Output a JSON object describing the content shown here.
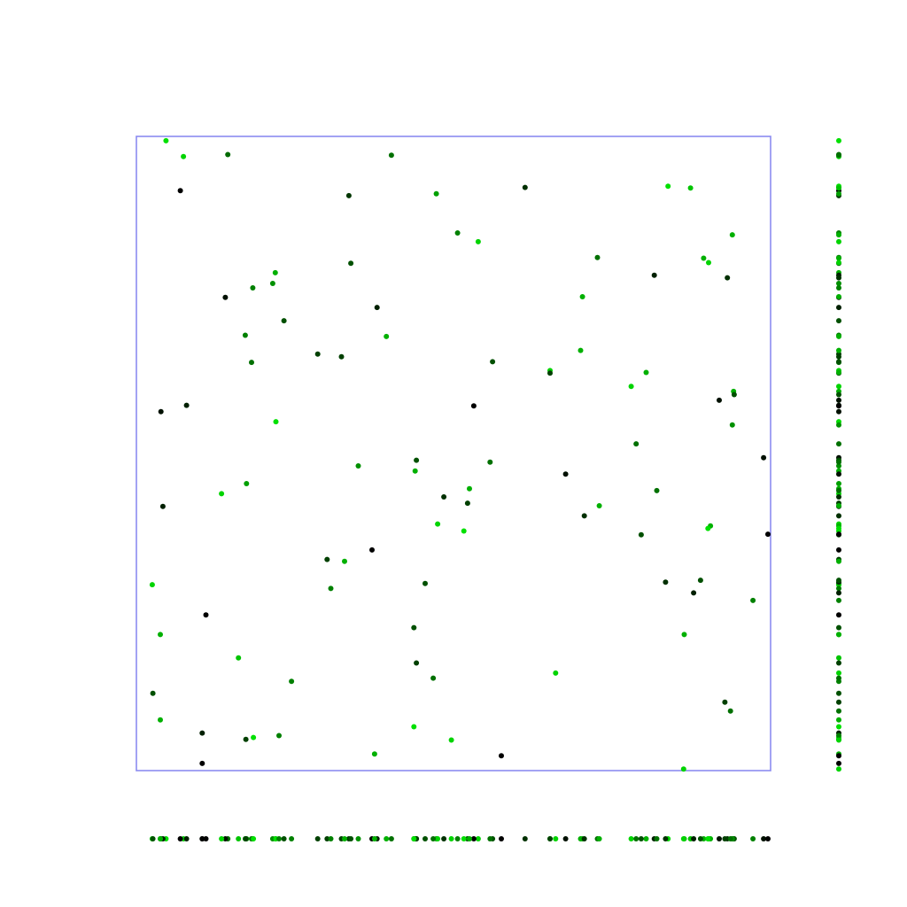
{
  "chart_data": {
    "type": "scatter",
    "title": "",
    "xlabel": "",
    "ylabel": "",
    "xlim": [
      0,
      1
    ],
    "ylim": [
      0,
      1
    ],
    "grid": false,
    "legend": "none",
    "frame_color": "#8c8cf0",
    "marginal_rugs": [
      "x-bottom",
      "y-right"
    ],
    "color_scale": {
      "dark": "#000000",
      "bright": "#00ee00"
    },
    "points": [
      {
        "x": 0.036,
        "y": 0.996,
        "c": "#00e000"
      },
      {
        "x": 0.064,
        "y": 0.971,
        "c": "#00d400"
      },
      {
        "x": 0.135,
        "y": 0.974,
        "c": "#006a00"
      },
      {
        "x": 0.397,
        "y": 0.973,
        "c": "#007000"
      },
      {
        "x": 0.059,
        "y": 0.917,
        "c": "#000000"
      },
      {
        "x": 0.329,
        "y": 0.909,
        "c": "#003600"
      },
      {
        "x": 0.469,
        "y": 0.912,
        "c": "#00a000"
      },
      {
        "x": 0.611,
        "y": 0.922,
        "c": "#003000"
      },
      {
        "x": 0.84,
        "y": 0.924,
        "c": "#00e000"
      },
      {
        "x": 0.876,
        "y": 0.921,
        "c": "#00c400"
      },
      {
        "x": 0.503,
        "y": 0.85,
        "c": "#008000"
      },
      {
        "x": 0.536,
        "y": 0.836,
        "c": "#00d400"
      },
      {
        "x": 0.943,
        "y": 0.847,
        "c": "#00b000"
      },
      {
        "x": 0.211,
        "y": 0.787,
        "c": "#00b000"
      },
      {
        "x": 0.207,
        "y": 0.77,
        "c": "#009000"
      },
      {
        "x": 0.175,
        "y": 0.763,
        "c": "#008000"
      },
      {
        "x": 0.332,
        "y": 0.802,
        "c": "#005000"
      },
      {
        "x": 0.727,
        "y": 0.811,
        "c": "#007000"
      },
      {
        "x": 0.897,
        "y": 0.81,
        "c": "#00b000"
      },
      {
        "x": 0.905,
        "y": 0.803,
        "c": "#00d400"
      },
      {
        "x": 0.818,
        "y": 0.783,
        "c": "#002000"
      },
      {
        "x": 0.935,
        "y": 0.779,
        "c": "#003000"
      },
      {
        "x": 0.131,
        "y": 0.748,
        "c": "#001000"
      },
      {
        "x": 0.374,
        "y": 0.732,
        "c": "#002000"
      },
      {
        "x": 0.703,
        "y": 0.749,
        "c": "#00b000"
      },
      {
        "x": 0.225,
        "y": 0.711,
        "c": "#005000"
      },
      {
        "x": 0.163,
        "y": 0.688,
        "c": "#008000"
      },
      {
        "x": 0.389,
        "y": 0.686,
        "c": "#00b000"
      },
      {
        "x": 0.279,
        "y": 0.658,
        "c": "#004000"
      },
      {
        "x": 0.317,
        "y": 0.654,
        "c": "#004000"
      },
      {
        "x": 0.173,
        "y": 0.645,
        "c": "#007000"
      },
      {
        "x": 0.559,
        "y": 0.646,
        "c": "#005000"
      },
      {
        "x": 0.7,
        "y": 0.664,
        "c": "#00b000"
      },
      {
        "x": 0.651,
        "y": 0.632,
        "c": "#00d400"
      },
      {
        "x": 0.651,
        "y": 0.628,
        "c": "#004000"
      },
      {
        "x": 0.805,
        "y": 0.629,
        "c": "#00b000"
      },
      {
        "x": 0.781,
        "y": 0.607,
        "c": "#00d400"
      },
      {
        "x": 0.945,
        "y": 0.599,
        "c": "#00b000"
      },
      {
        "x": 0.946,
        "y": 0.594,
        "c": "#005000"
      },
      {
        "x": 0.028,
        "y": 0.567,
        "c": "#001000"
      },
      {
        "x": 0.069,
        "y": 0.577,
        "c": "#002000"
      },
      {
        "x": 0.529,
        "y": 0.576,
        "c": "#000000"
      },
      {
        "x": 0.922,
        "y": 0.585,
        "c": "#001000"
      },
      {
        "x": 0.212,
        "y": 0.551,
        "c": "#00e000"
      },
      {
        "x": 0.943,
        "y": 0.546,
        "c": "#009000"
      },
      {
        "x": 0.993,
        "y": 0.494,
        "c": "#001000"
      },
      {
        "x": 0.789,
        "y": 0.516,
        "c": "#007000"
      },
      {
        "x": 0.344,
        "y": 0.481,
        "c": "#009000"
      },
      {
        "x": 0.435,
        "y": 0.473,
        "c": "#00b000"
      },
      {
        "x": 0.437,
        "y": 0.49,
        "c": "#005000"
      },
      {
        "x": 0.555,
        "y": 0.487,
        "c": "#007000"
      },
      {
        "x": 0.676,
        "y": 0.468,
        "c": "#001000"
      },
      {
        "x": 0.165,
        "y": 0.453,
        "c": "#00a000"
      },
      {
        "x": 0.125,
        "y": 0.437,
        "c": "#00d400"
      },
      {
        "x": 0.481,
        "y": 0.432,
        "c": "#003000"
      },
      {
        "x": 0.519,
        "y": 0.422,
        "c": "#004000"
      },
      {
        "x": 0.522,
        "y": 0.445,
        "c": "#00b000"
      },
      {
        "x": 0.822,
        "y": 0.442,
        "c": "#007000"
      },
      {
        "x": 0.031,
        "y": 0.417,
        "c": "#002000"
      },
      {
        "x": 0.73,
        "y": 0.418,
        "c": "#00b000"
      },
      {
        "x": 0.706,
        "y": 0.402,
        "c": "#003000"
      },
      {
        "x": 0.471,
        "y": 0.389,
        "c": "#00d400"
      },
      {
        "x": 0.513,
        "y": 0.378,
        "c": "#00e000"
      },
      {
        "x": 0.908,
        "y": 0.386,
        "c": "#00b000"
      },
      {
        "x": 0.904,
        "y": 0.382,
        "c": "#00e000"
      },
      {
        "x": 0.797,
        "y": 0.372,
        "c": "#005000"
      },
      {
        "x": 1.0,
        "y": 0.373,
        "c": "#000000"
      },
      {
        "x": 0.366,
        "y": 0.348,
        "c": "#000000"
      },
      {
        "x": 0.294,
        "y": 0.333,
        "c": "#004000"
      },
      {
        "x": 0.322,
        "y": 0.33,
        "c": "#00b000"
      },
      {
        "x": 0.451,
        "y": 0.295,
        "c": "#005000"
      },
      {
        "x": 0.014,
        "y": 0.293,
        "c": "#00d400"
      },
      {
        "x": 0.3,
        "y": 0.287,
        "c": "#008000"
      },
      {
        "x": 0.836,
        "y": 0.297,
        "c": "#003000"
      },
      {
        "x": 0.892,
        "y": 0.3,
        "c": "#005000"
      },
      {
        "x": 0.881,
        "y": 0.28,
        "c": "#002000"
      },
      {
        "x": 0.976,
        "y": 0.268,
        "c": "#008000"
      },
      {
        "x": 0.1,
        "y": 0.245,
        "c": "#000000"
      },
      {
        "x": 0.027,
        "y": 0.214,
        "c": "#00b000"
      },
      {
        "x": 0.433,
        "y": 0.225,
        "c": "#005000"
      },
      {
        "x": 0.866,
        "y": 0.214,
        "c": "#00b000"
      },
      {
        "x": 0.152,
        "y": 0.177,
        "c": "#00c400"
      },
      {
        "x": 0.437,
        "y": 0.169,
        "c": "#004000"
      },
      {
        "x": 0.237,
        "y": 0.14,
        "c": "#008000"
      },
      {
        "x": 0.464,
        "y": 0.145,
        "c": "#007000"
      },
      {
        "x": 0.66,
        "y": 0.153,
        "c": "#00d400"
      },
      {
        "x": 0.015,
        "y": 0.121,
        "c": "#005000"
      },
      {
        "x": 0.931,
        "y": 0.107,
        "c": "#004000"
      },
      {
        "x": 0.94,
        "y": 0.093,
        "c": "#007000"
      },
      {
        "x": 0.027,
        "y": 0.079,
        "c": "#00b000"
      },
      {
        "x": 0.433,
        "y": 0.068,
        "c": "#00e000"
      },
      {
        "x": 0.094,
        "y": 0.058,
        "c": "#002000"
      },
      {
        "x": 0.164,
        "y": 0.048,
        "c": "#004000"
      },
      {
        "x": 0.176,
        "y": 0.051,
        "c": "#00e000"
      },
      {
        "x": 0.217,
        "y": 0.054,
        "c": "#008000"
      },
      {
        "x": 0.493,
        "y": 0.047,
        "c": "#00d400"
      },
      {
        "x": 0.37,
        "y": 0.025,
        "c": "#00b000"
      },
      {
        "x": 0.573,
        "y": 0.022,
        "c": "#000000"
      },
      {
        "x": 0.094,
        "y": 0.01,
        "c": "#000000"
      },
      {
        "x": 0.865,
        "y": 0.001,
        "c": "#00d400"
      }
    ]
  }
}
